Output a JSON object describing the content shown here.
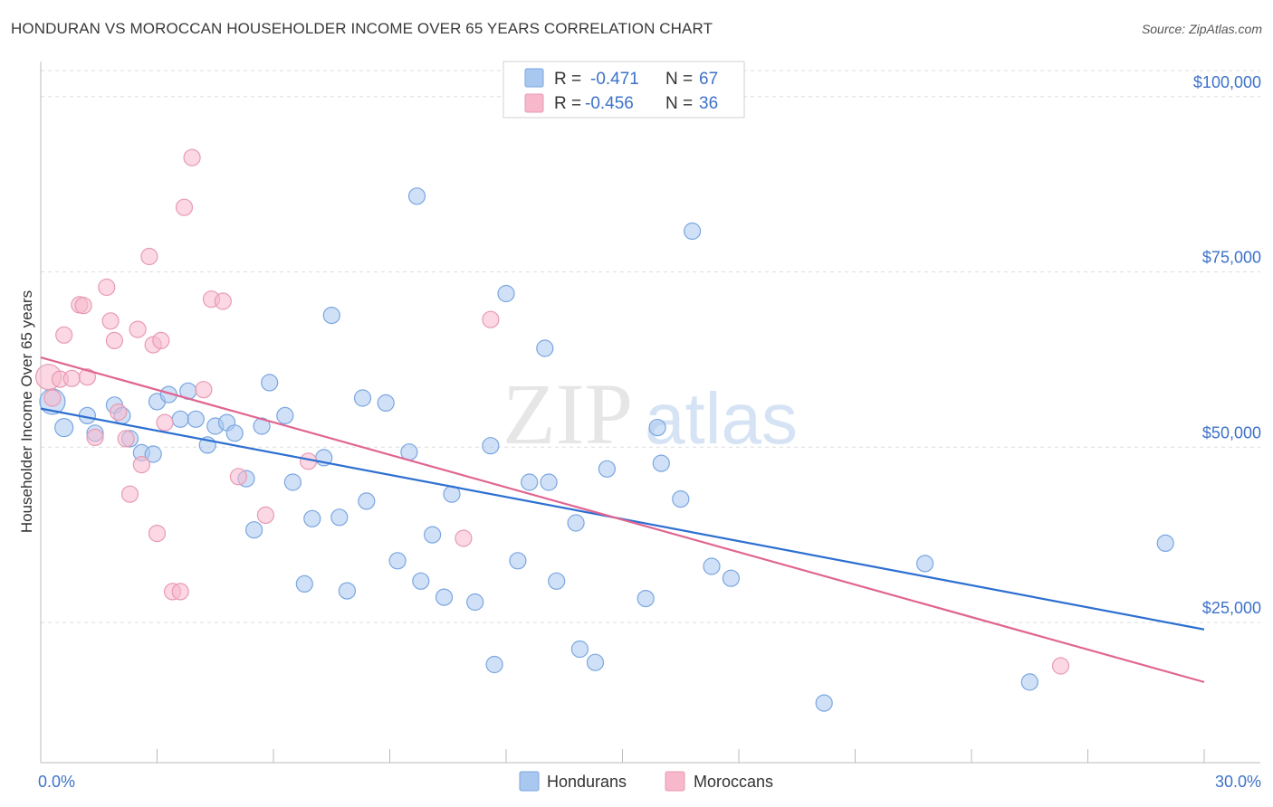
{
  "title": "HONDURAN VS MOROCCAN HOUSEHOLDER INCOME OVER 65 YEARS CORRELATION CHART",
  "source": "Source: ZipAtlas.com",
  "watermark": {
    "zip": "ZIP",
    "atlas": "atlas"
  },
  "stats_legend": [
    {
      "r_label": "R =",
      "r_value": "-0.471",
      "n_label": "N =",
      "n_value": "67",
      "color": "#a9c8f0"
    },
    {
      "r_label": "R =",
      "r_value": "-0.456",
      "n_label": "N =",
      "n_value": "36",
      "color": "#f7b8cc"
    }
  ],
  "chart_data": {
    "type": "scatter",
    "xlabel": "",
    "ylabel": "Householder Income Over 65 years",
    "xlim": [
      0,
      30
    ],
    "ylim": [
      5000,
      105000
    ],
    "x_tick_labels": [
      {
        "value": 0,
        "label": "0.0%"
      },
      {
        "value": 30,
        "label": "30.0%"
      }
    ],
    "y_tick_labels": [
      {
        "value": 25000,
        "label": "$25,000"
      },
      {
        "value": 50000,
        "label": "$50,000"
      },
      {
        "value": 75000,
        "label": "$75,000"
      },
      {
        "value": 100000,
        "label": "$100,000"
      }
    ],
    "grid": true,
    "legend_position": "bottom-center",
    "series": [
      {
        "name": "Hondurans",
        "color": "#a9c8f0",
        "stroke": "#7aa6e0",
        "trend_color": "#2d6fd1",
        "trend": {
          "x0": 0,
          "y0": 55500,
          "x1": 30,
          "y1": 24000
        },
        "points": [
          [
            0.3,
            56500,
            14
          ],
          [
            0.6,
            52800,
            10
          ],
          [
            1.2,
            54500,
            9
          ],
          [
            1.4,
            52000,
            9
          ],
          [
            1.9,
            56000,
            9
          ],
          [
            2.1,
            54500,
            9
          ],
          [
            2.3,
            51200,
            9
          ],
          [
            2.6,
            49200,
            9
          ],
          [
            2.9,
            49000,
            9
          ],
          [
            3.0,
            56500,
            9
          ],
          [
            3.3,
            57500,
            9
          ],
          [
            3.6,
            54000,
            9
          ],
          [
            3.8,
            58000,
            9
          ],
          [
            4.0,
            54000,
            9
          ],
          [
            4.3,
            50300,
            9
          ],
          [
            4.5,
            53000,
            9
          ],
          [
            4.8,
            53500,
            9
          ],
          [
            5.0,
            52000,
            9
          ],
          [
            5.3,
            45500,
            9
          ],
          [
            5.5,
            38200,
            9
          ],
          [
            5.7,
            53000,
            9
          ],
          [
            5.9,
            59200,
            9
          ],
          [
            6.3,
            54500,
            9
          ],
          [
            6.5,
            45000,
            9
          ],
          [
            6.8,
            30500,
            9
          ],
          [
            7.0,
            39800,
            9
          ],
          [
            7.3,
            48500,
            9
          ],
          [
            7.5,
            68800,
            9
          ],
          [
            7.7,
            40000,
            9
          ],
          [
            7.9,
            29500,
            9
          ],
          [
            8.3,
            57000,
            9
          ],
          [
            8.4,
            42300,
            9
          ],
          [
            8.9,
            56300,
            9
          ],
          [
            9.2,
            33800,
            9
          ],
          [
            9.5,
            49300,
            9
          ],
          [
            9.7,
            85800,
            9
          ],
          [
            9.8,
            30900,
            9
          ],
          [
            10.1,
            37500,
            9
          ],
          [
            10.4,
            28600,
            9
          ],
          [
            10.6,
            43300,
            9
          ],
          [
            11.2,
            27900,
            9
          ],
          [
            11.6,
            50200,
            9
          ],
          [
            11.7,
            19000,
            9
          ],
          [
            12.0,
            71900,
            9
          ],
          [
            12.3,
            33800,
            9
          ],
          [
            12.6,
            45000,
            9
          ],
          [
            13.0,
            64100,
            9
          ],
          [
            13.1,
            45000,
            9
          ],
          [
            13.3,
            30900,
            9
          ],
          [
            13.8,
            39200,
            9
          ],
          [
            13.9,
            21200,
            9
          ],
          [
            14.3,
            19300,
            9
          ],
          [
            14.6,
            46900,
            9
          ],
          [
            15.6,
            28400,
            9
          ],
          [
            15.9,
            52800,
            9
          ],
          [
            16.0,
            47700,
            9
          ],
          [
            16.5,
            42600,
            9
          ],
          [
            16.8,
            80800,
            9
          ],
          [
            17.3,
            33000,
            9
          ],
          [
            17.8,
            31300,
            9
          ],
          [
            20.2,
            13500,
            9
          ],
          [
            22.8,
            33400,
            9
          ],
          [
            25.5,
            16500,
            9
          ],
          [
            29.0,
            36300,
            9
          ]
        ]
      },
      {
        "name": "Moroccans",
        "color": "#f7b8cc",
        "stroke": "#e89ab3",
        "trend_color": "#e06590",
        "trend": {
          "x0": 0,
          "y0": 62800,
          "x1": 30,
          "y1": 16500
        },
        "points": [
          [
            0.2,
            60000,
            14
          ],
          [
            0.3,
            57000,
            9
          ],
          [
            0.5,
            59700,
            9
          ],
          [
            0.6,
            66000,
            9
          ],
          [
            0.8,
            59800,
            9
          ],
          [
            1.0,
            70300,
            9
          ],
          [
            1.1,
            70200,
            9
          ],
          [
            1.2,
            60000,
            9
          ],
          [
            1.4,
            51400,
            9
          ],
          [
            1.7,
            72800,
            9
          ],
          [
            1.8,
            68000,
            9
          ],
          [
            1.9,
            65200,
            9
          ],
          [
            2.0,
            55000,
            9
          ],
          [
            2.2,
            51200,
            9
          ],
          [
            2.3,
            43300,
            9
          ],
          [
            2.5,
            66800,
            9
          ],
          [
            2.6,
            47500,
            9
          ],
          [
            2.8,
            77200,
            9
          ],
          [
            2.9,
            64600,
            9
          ],
          [
            3.0,
            37700,
            9
          ],
          [
            3.1,
            65200,
            9
          ],
          [
            3.2,
            53500,
            9
          ],
          [
            3.4,
            29400,
            9
          ],
          [
            3.6,
            29400,
            9
          ],
          [
            3.7,
            84200,
            9
          ],
          [
            3.9,
            91300,
            9
          ],
          [
            4.2,
            58200,
            9
          ],
          [
            4.4,
            71100,
            9
          ],
          [
            4.7,
            70800,
            9
          ],
          [
            5.1,
            45800,
            9
          ],
          [
            5.8,
            40300,
            9
          ],
          [
            6.9,
            48000,
            9
          ],
          [
            10.9,
            37000,
            9
          ],
          [
            11.6,
            68200,
            9
          ],
          [
            26.3,
            18800,
            9
          ]
        ]
      }
    ]
  }
}
